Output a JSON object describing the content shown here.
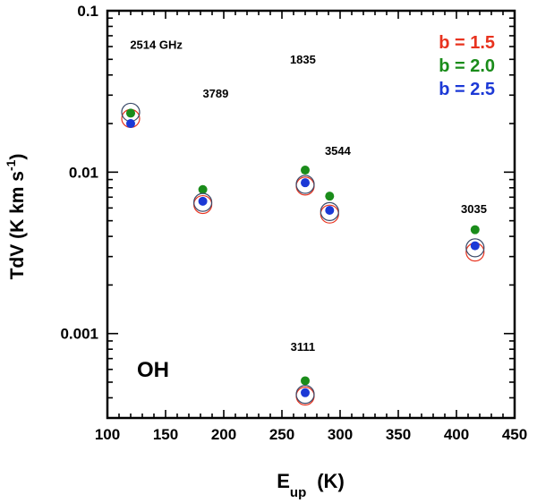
{
  "chart_data": {
    "type": "scatter",
    "xlabel": {
      "main": "E",
      "sub": "up",
      "unit": "(K)"
    },
    "ylabel": {
      "main": "TdV (K km s",
      "sup": "-1",
      "close": ")"
    },
    "xlim": [
      100,
      450
    ],
    "ylim": [
      0.0003,
      0.1
    ],
    "yscale": "log",
    "x_ticks": [
      "100",
      "150",
      "200",
      "250",
      "300",
      "350",
      "400",
      "450"
    ],
    "y_ticks": [
      "0.1",
      "0.01",
      "0.001"
    ],
    "legend": {
      "placement": "top-right",
      "entries": [
        {
          "label": "b = 1.5",
          "color": "#e8321e"
        },
        {
          "label": "b = 2.0",
          "color": "#1a8c1a"
        },
        {
          "label": "b = 2.5",
          "color": "#1c39d6"
        }
      ]
    },
    "species_label": "OH",
    "annotations": [
      {
        "text": "2514 GHz",
        "x": 142,
        "y": 0.058
      },
      {
        "text": "3789",
        "x": 193,
        "y": 0.029
      },
      {
        "text": "1835",
        "x": 268,
        "y": 0.047
      },
      {
        "text": "3544",
        "x": 298,
        "y": 0.0128
      },
      {
        "text": "3035",
        "x": 415,
        "y": 0.0056
      },
      {
        "text": "3111",
        "x": 268,
        "y": 0.00078
      }
    ],
    "series": [
      {
        "name": "b = 1.5",
        "marker": "open-circle",
        "color": "#e8321e",
        "x": [
          120,
          182,
          270,
          291,
          416,
          270
        ],
        "y": [
          0.0215,
          0.0063,
          0.0082,
          0.0055,
          0.0032,
          0.00041
        ]
      },
      {
        "name": "b = 2.0",
        "marker": "filled-dot",
        "color": "#1a8c1a",
        "x": [
          120,
          182,
          270,
          291,
          416,
          270
        ],
        "y": [
          0.0232,
          0.0078,
          0.0103,
          0.0071,
          0.0044,
          0.00051
        ]
      },
      {
        "name": "b = 2.5",
        "marker": "filled-dot",
        "color": "#1c39d6",
        "x": [
          120,
          182,
          270,
          291,
          416,
          270
        ],
        "y": [
          0.02,
          0.0066,
          0.0086,
          0.0058,
          0.0035,
          0.00043
        ]
      },
      {
        "marker": "open-circle",
        "color": "#3a4a6a",
        "x": [
          120,
          182,
          270,
          291,
          416,
          270
        ],
        "y": [
          0.0235,
          0.0065,
          0.0084,
          0.0057,
          0.0034,
          0.00042
        ]
      }
    ]
  }
}
